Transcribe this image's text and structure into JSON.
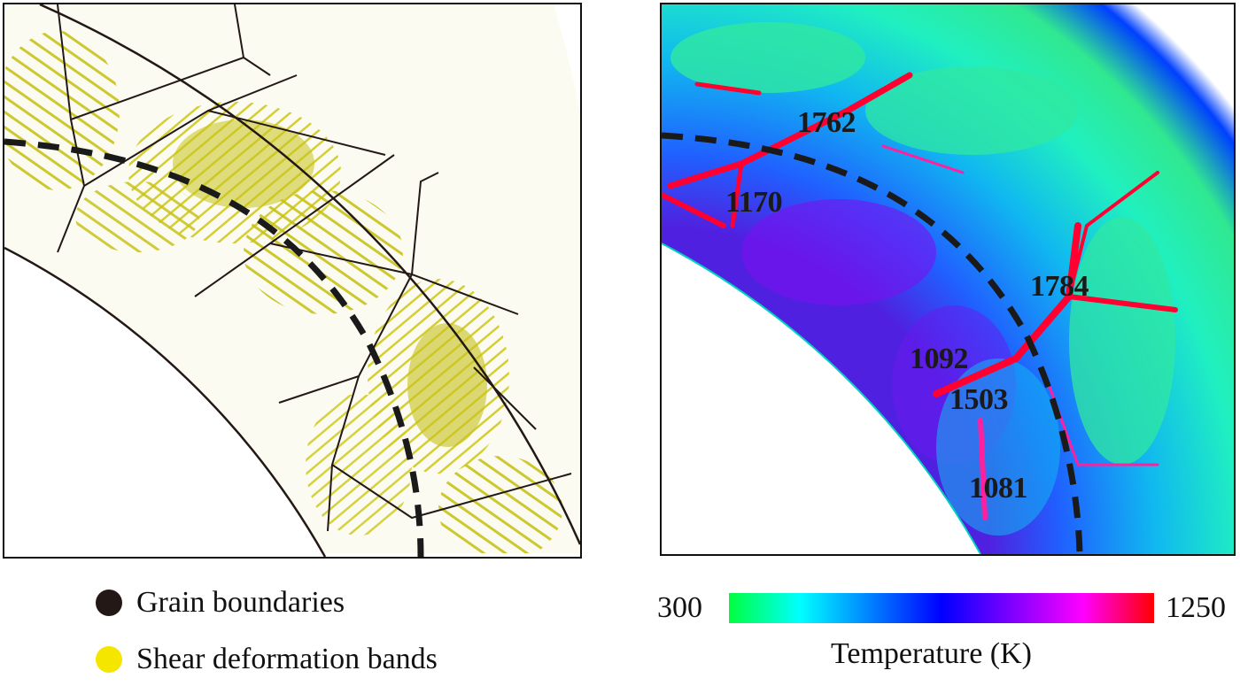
{
  "legend": {
    "items": [
      {
        "label": "Grain boundaries",
        "color": "#231815"
      },
      {
        "label": "Shear deformation bands",
        "color": "#f5e600"
      }
    ]
  },
  "colorbar": {
    "min_label": "300",
    "max_label": "1250",
    "title": "Temperature (K)",
    "colors": [
      "#00ff40",
      "#00ffff",
      "#0080ff",
      "#0000ff",
      "#8000ff",
      "#ff00ff",
      "#ff0000"
    ]
  },
  "temperature_labels": [
    "1762",
    "1170",
    "1784",
    "1092",
    "1503",
    "1081"
  ],
  "colors": {
    "grain_boundary": "#231815",
    "shear_band": "#c8c21a",
    "ring_base": "#0a5cf0",
    "hot": "#ff0030"
  }
}
